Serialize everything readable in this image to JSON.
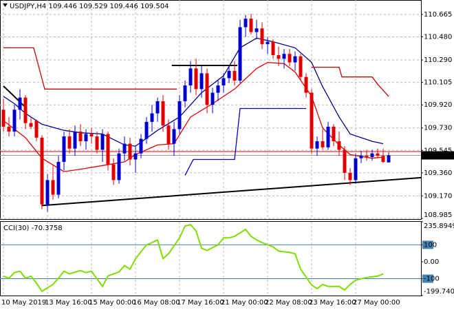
{
  "chart_data": [
    {
      "type": "candlestick",
      "title": "USDJPY,H4  109.446 109.529 109.446 109.504",
      "categories": [
        "10 May 2019",
        null,
        null,
        null,
        null,
        null,
        null,
        null,
        "13 May 16:00",
        null,
        null,
        null,
        null,
        null,
        null,
        null,
        "15 May 00:00",
        null,
        null,
        null,
        null,
        null,
        null,
        null,
        "16 May 08:00",
        null,
        null,
        null,
        null,
        null,
        null,
        null,
        "17 May 16:00",
        null,
        null,
        null,
        null,
        null,
        null,
        null,
        "21 May 00:00",
        null,
        null,
        null,
        null,
        null,
        null,
        null,
        "22 May 08:00",
        null,
        null,
        null,
        null,
        null,
        null,
        null,
        "23 May 16:00",
        null,
        null,
        null,
        null,
        null,
        null,
        null,
        "27 May 00:00",
        null,
        null,
        null,
        null,
        null,
        null
      ],
      "open": [
        109.88,
        109.74,
        109.7,
        109.88,
        109.98,
        109.77,
        109.79,
        109.65,
        109.1,
        109.3,
        109.18,
        109.45,
        109.66,
        109.56,
        109.7,
        109.62,
        109.68,
        109.66,
        109.55,
        109.68,
        109.43,
        109.3,
        109.52,
        109.6,
        109.47,
        109.52,
        109.64,
        109.78,
        109.85,
        109.95,
        109.75,
        109.6,
        109.72,
        109.95,
        110.08,
        110.22,
        110.05,
        110.18,
        109.92,
        110.02,
        110.08,
        110.14,
        110.2,
        110.12,
        110.56,
        110.63,
        110.52,
        110.55,
        110.42,
        110.44,
        110.33,
        110.3,
        110.34,
        110.27,
        110.32,
        110.15,
        110.02,
        109.56,
        109.62,
        109.57,
        109.74,
        109.62,
        109.55,
        109.36,
        109.3,
        109.48,
        109.5,
        109.49,
        109.52,
        109.5,
        109.446
      ],
      "high": [
        109.97,
        109.82,
        109.92,
        110.05,
        110.0,
        109.82,
        109.8,
        109.67,
        109.35,
        109.42,
        109.5,
        109.7,
        109.72,
        109.75,
        109.76,
        109.72,
        109.73,
        109.7,
        109.72,
        109.7,
        109.48,
        109.56,
        109.66,
        109.65,
        109.58,
        109.68,
        109.82,
        109.92,
        109.98,
        110.0,
        109.8,
        109.78,
        110.0,
        110.12,
        110.28,
        110.3,
        110.24,
        110.22,
        110.06,
        110.12,
        110.18,
        110.24,
        110.28,
        110.62,
        110.66,
        110.67,
        110.62,
        110.6,
        110.48,
        110.46,
        110.4,
        110.38,
        110.38,
        110.36,
        110.34,
        110.18,
        110.05,
        109.66,
        109.72,
        109.78,
        109.76,
        109.7,
        109.58,
        109.4,
        109.52,
        109.54,
        109.55,
        109.55,
        109.56,
        109.56,
        109.529
      ],
      "low": [
        109.7,
        109.66,
        109.66,
        109.8,
        109.72,
        109.72,
        109.62,
        109.06,
        109.04,
        109.14,
        109.15,
        109.38,
        109.52,
        109.5,
        109.58,
        109.55,
        109.6,
        109.52,
        109.45,
        109.38,
        109.26,
        109.27,
        109.46,
        109.42,
        109.36,
        109.48,
        109.6,
        109.7,
        109.78,
        109.7,
        109.55,
        109.5,
        109.68,
        109.9,
        110.02,
        110.0,
        109.98,
        109.85,
        109.85,
        109.95,
        110.02,
        110.1,
        110.08,
        110.1,
        110.48,
        110.5,
        110.46,
        110.38,
        110.34,
        110.3,
        110.24,
        110.22,
        110.24,
        110.2,
        110.12,
        109.98,
        109.52,
        109.5,
        109.55,
        109.55,
        109.58,
        109.5,
        109.3,
        109.26,
        109.27,
        109.44,
        109.46,
        109.46,
        109.48,
        109.44,
        109.446
      ],
      "close": [
        109.74,
        109.7,
        109.88,
        109.98,
        109.77,
        109.74,
        109.65,
        109.1,
        109.3,
        109.18,
        109.45,
        109.66,
        109.56,
        109.7,
        109.62,
        109.68,
        109.66,
        109.55,
        109.68,
        109.43,
        109.3,
        109.52,
        109.6,
        109.47,
        109.52,
        109.64,
        109.78,
        109.85,
        109.95,
        109.75,
        109.6,
        109.72,
        109.95,
        110.08,
        110.22,
        110.05,
        110.18,
        109.92,
        110.02,
        110.08,
        110.14,
        110.2,
        110.12,
        110.56,
        110.63,
        110.52,
        110.55,
        110.42,
        110.44,
        110.33,
        110.3,
        110.34,
        110.27,
        110.32,
        110.15,
        110.02,
        109.56,
        109.62,
        109.57,
        109.74,
        109.62,
        109.55,
        109.36,
        109.3,
        109.48,
        109.5,
        109.49,
        109.52,
        109.5,
        109.45,
        109.504
      ],
      "up_color": "#0000cd",
      "down_color": "#e00000",
      "lines": [
        {
          "color": "#e00000",
          "x": [
            0,
            4,
            7,
            11,
            14,
            18,
            22,
            24,
            28,
            31,
            34,
            38,
            42,
            46,
            48,
            51,
            53,
            56,
            58,
            61,
            63,
            67,
            69
          ],
          "values": [
            109.79,
            109.65,
            109.48,
            109.37,
            109.39,
            109.42,
            109.45,
            109.51,
            109.59,
            109.6,
            109.82,
            109.93,
            110.05,
            110.22,
            110.27,
            110.26,
            110.19,
            109.99,
            109.73,
            109.59,
            109.51,
            109.48,
            109.49
          ]
        },
        {
          "color": "#00008b",
          "x": [
            0,
            2,
            4,
            7,
            11,
            14,
            18,
            22,
            24,
            28,
            32,
            36,
            40,
            43,
            46,
            49,
            53,
            56,
            58,
            61,
            63,
            67,
            69
          ],
          "values": [
            109.99,
            109.93,
            109.85,
            109.76,
            109.71,
            109.69,
            109.68,
            109.59,
            109.58,
            109.71,
            109.82,
            110.02,
            110.16,
            110.39,
            110.47,
            110.44,
            110.39,
            110.27,
            110.07,
            109.82,
            109.68,
            109.62,
            109.6
          ]
        },
        {
          "color": "#cc0000",
          "x": [
            0,
            5.5,
            7.5,
            31.5
          ],
          "values": [
            110.39,
            110.39,
            110.05,
            110.05
          ]
        },
        {
          "color": "#cc0000",
          "x": [
            56,
            61,
            61.5,
            67,
            68,
            70
          ],
          "values": [
            110.23,
            110.23,
            110.15,
            110.15,
            110.09,
            109.99
          ]
        },
        {
          "color": "#0000cc",
          "x": [
            33,
            34.5,
            42,
            43,
            55
          ],
          "values": [
            109.34,
            109.47,
            109.47,
            109.89,
            109.89
          ]
        }
      ],
      "trendlines": [
        {
          "color": "#000000",
          "x": [
            6.9,
            75.9
          ],
          "values": [
            109.09,
            109.32
          ]
        },
        {
          "color": "#000000",
          "x": [
            30.6,
            42.5
          ],
          "values": [
            110.245,
            110.245
          ]
        },
        {
          "color": "#000000",
          "x": [
            0,
            4
          ],
          "values": [
            110.075,
            109.9
          ]
        }
      ],
      "ask": 109.535,
      "ask_color": "#e00000",
      "bid": 109.504,
      "xlim": [
        -0.625,
        75.875
      ],
      "ylim": [
        108.979,
        110.784
      ],
      "yticks": [
        110.665,
        {
          "value": 110.48,
          "label": "110.480"
        },
        {
          "value": 110.29,
          "label": "110.290"
        },
        110.105,
        {
          "value": 109.92,
          "label": "109.920"
        },
        {
          "value": 109.73,
          "label": "109.730"
        },
        109.545,
        {
          "value": 109.36,
          "label": "109.360"
        },
        {
          "value": 109.17,
          "label": "109.170"
        },
        108.985
      ],
      "grid": true
    },
    {
      "type": "line",
      "title": "CCI(30) -70.3758",
      "color": "#7fdd00",
      "x": [
        0,
        1,
        2,
        3,
        4,
        5,
        6,
        7,
        9,
        10,
        11,
        12,
        14,
        15,
        16,
        18,
        19,
        21,
        22,
        23,
        24,
        26,
        27,
        28,
        29,
        30,
        32,
        33,
        34,
        35,
        36,
        37,
        39,
        40,
        41,
        42,
        44,
        45,
        46,
        47,
        49,
        50,
        52,
        53,
        54,
        56,
        57,
        58,
        59,
        61,
        62,
        63,
        64,
        66,
        68,
        69
      ],
      "values": [
        -85,
        -97,
        -64,
        -56,
        -97,
        -85,
        -126,
        -175,
        -134,
        -97,
        -56,
        -72,
        -52,
        -64,
        -56,
        -146,
        -84,
        -60,
        -23,
        -44,
        18,
        100,
        113,
        129,
        18,
        47,
        141,
        211,
        219,
        182,
        80,
        67,
        100,
        141,
        141,
        150,
        191,
        150,
        129,
        113,
        88,
        63,
        55,
        47,
        -44,
        -138,
        -159,
        -134,
        -146,
        -146,
        -167,
        -134,
        -109,
        -93,
        -85,
        -72
      ],
      "levels": [
        100,
        -100
      ],
      "level_color": "#4682b4",
      "xlim": [
        -0.625,
        75.875
      ],
      "ylim": [
        -199.7404,
        235.8949
      ],
      "yticks": [
        235.8949,
        100,
        {
          "value": 0,
          "label": "0.00"
        },
        -100,
        -199.7404
      ],
      "grid": true
    }
  ]
}
